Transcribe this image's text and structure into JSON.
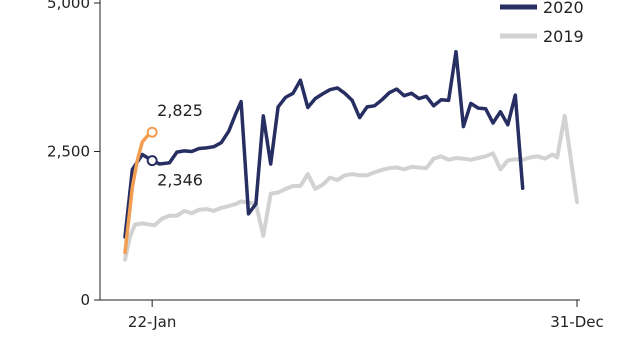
{
  "chart_data": {
    "type": "line",
    "title": "",
    "xlabel": "",
    "ylabel": "",
    "ylim": [
      0,
      5000
    ],
    "yticks": [
      {
        "value": 0,
        "label": "0"
      },
      {
        "value": 2500,
        "label": "2,500"
      },
      {
        "value": 5000,
        "label": "5,000"
      }
    ],
    "xticks": [
      {
        "day": 22,
        "label": "22-Jan"
      },
      {
        "day": 366,
        "label": "31-Dec"
      }
    ],
    "legend": {
      "position": "top-right"
    },
    "grid": false,
    "series": [
      {
        "name": "2019",
        "color": "#d2d2d2",
        "points": [
          [
            0,
            680
          ],
          [
            4,
            1060
          ],
          [
            8,
            1270
          ],
          [
            14,
            1290
          ],
          [
            20,
            1270
          ],
          [
            24,
            1260
          ],
          [
            30,
            1370
          ],
          [
            36,
            1420
          ],
          [
            42,
            1420
          ],
          [
            48,
            1500
          ],
          [
            54,
            1460
          ],
          [
            60,
            1520
          ],
          [
            66,
            1530
          ],
          [
            72,
            1500
          ],
          [
            78,
            1550
          ],
          [
            84,
            1580
          ],
          [
            90,
            1620
          ],
          [
            94,
            1660
          ],
          [
            100,
            1640
          ],
          [
            106,
            1620
          ],
          [
            112,
            1080
          ],
          [
            118,
            1790
          ],
          [
            124,
            1810
          ],
          [
            130,
            1870
          ],
          [
            136,
            1920
          ],
          [
            142,
            1920
          ],
          [
            148,
            2120
          ],
          [
            154,
            1870
          ],
          [
            160,
            1940
          ],
          [
            166,
            2060
          ],
          [
            172,
            2020
          ],
          [
            178,
            2100
          ],
          [
            184,
            2120
          ],
          [
            190,
            2100
          ],
          [
            196,
            2100
          ],
          [
            202,
            2150
          ],
          [
            208,
            2190
          ],
          [
            214,
            2220
          ],
          [
            220,
            2230
          ],
          [
            226,
            2200
          ],
          [
            232,
            2240
          ],
          [
            238,
            2230
          ],
          [
            244,
            2220
          ],
          [
            250,
            2380
          ],
          [
            256,
            2420
          ],
          [
            262,
            2360
          ],
          [
            268,
            2390
          ],
          [
            274,
            2380
          ],
          [
            280,
            2360
          ],
          [
            286,
            2390
          ],
          [
            292,
            2420
          ],
          [
            298,
            2470
          ],
          [
            304,
            2200
          ],
          [
            310,
            2350
          ],
          [
            316,
            2370
          ],
          [
            322,
            2360
          ],
          [
            328,
            2400
          ],
          [
            334,
            2420
          ],
          [
            340,
            2380
          ],
          [
            346,
            2450
          ],
          [
            350,
            2400
          ],
          [
            356,
            3100
          ],
          [
            366,
            1650
          ]
        ]
      },
      {
        "name": "2020",
        "color": "#262e62",
        "points": [
          [
            0,
            1060
          ],
          [
            6,
            2200
          ],
          [
            14,
            2450
          ],
          [
            22,
            2346
          ],
          [
            28,
            2290
          ],
          [
            36,
            2310
          ],
          [
            42,
            2490
          ],
          [
            48,
            2510
          ],
          [
            54,
            2500
          ],
          [
            60,
            2550
          ],
          [
            66,
            2560
          ],
          [
            72,
            2580
          ],
          [
            78,
            2650
          ],
          [
            84,
            2840
          ],
          [
            90,
            3150
          ],
          [
            94,
            3340
          ],
          [
            100,
            1450
          ],
          [
            106,
            1620
          ],
          [
            112,
            3100
          ],
          [
            118,
            2290
          ],
          [
            124,
            3250
          ],
          [
            130,
            3410
          ],
          [
            136,
            3480
          ],
          [
            142,
            3700
          ],
          [
            148,
            3240
          ],
          [
            154,
            3390
          ],
          [
            160,
            3470
          ],
          [
            166,
            3540
          ],
          [
            172,
            3570
          ],
          [
            178,
            3480
          ],
          [
            184,
            3360
          ],
          [
            190,
            3070
          ],
          [
            196,
            3250
          ],
          [
            202,
            3270
          ],
          [
            208,
            3370
          ],
          [
            214,
            3490
          ],
          [
            220,
            3550
          ],
          [
            226,
            3440
          ],
          [
            232,
            3480
          ],
          [
            238,
            3390
          ],
          [
            244,
            3430
          ],
          [
            250,
            3270
          ],
          [
            256,
            3370
          ],
          [
            262,
            3360
          ],
          [
            268,
            4180
          ],
          [
            274,
            2920
          ],
          [
            280,
            3310
          ],
          [
            286,
            3230
          ],
          [
            292,
            3220
          ],
          [
            298,
            2980
          ],
          [
            304,
            3170
          ],
          [
            310,
            2950
          ],
          [
            316,
            3450
          ],
          [
            322,
            1880
          ]
        ]
      },
      {
        "name": "",
        "color": "#f29e52",
        "points": [
          [
            0,
            800
          ],
          [
            3,
            1350
          ],
          [
            6,
            1900
          ],
          [
            10,
            2350
          ],
          [
            14,
            2660
          ],
          [
            18,
            2760
          ],
          [
            22,
            2825
          ]
        ]
      }
    ],
    "annotations": [
      {
        "text": "2,825",
        "x": 22,
        "y": 2825,
        "series": 2,
        "placement": "above"
      },
      {
        "text": "2,346",
        "x": 22,
        "y": 2346,
        "series": 1,
        "placement": "below"
      }
    ]
  }
}
